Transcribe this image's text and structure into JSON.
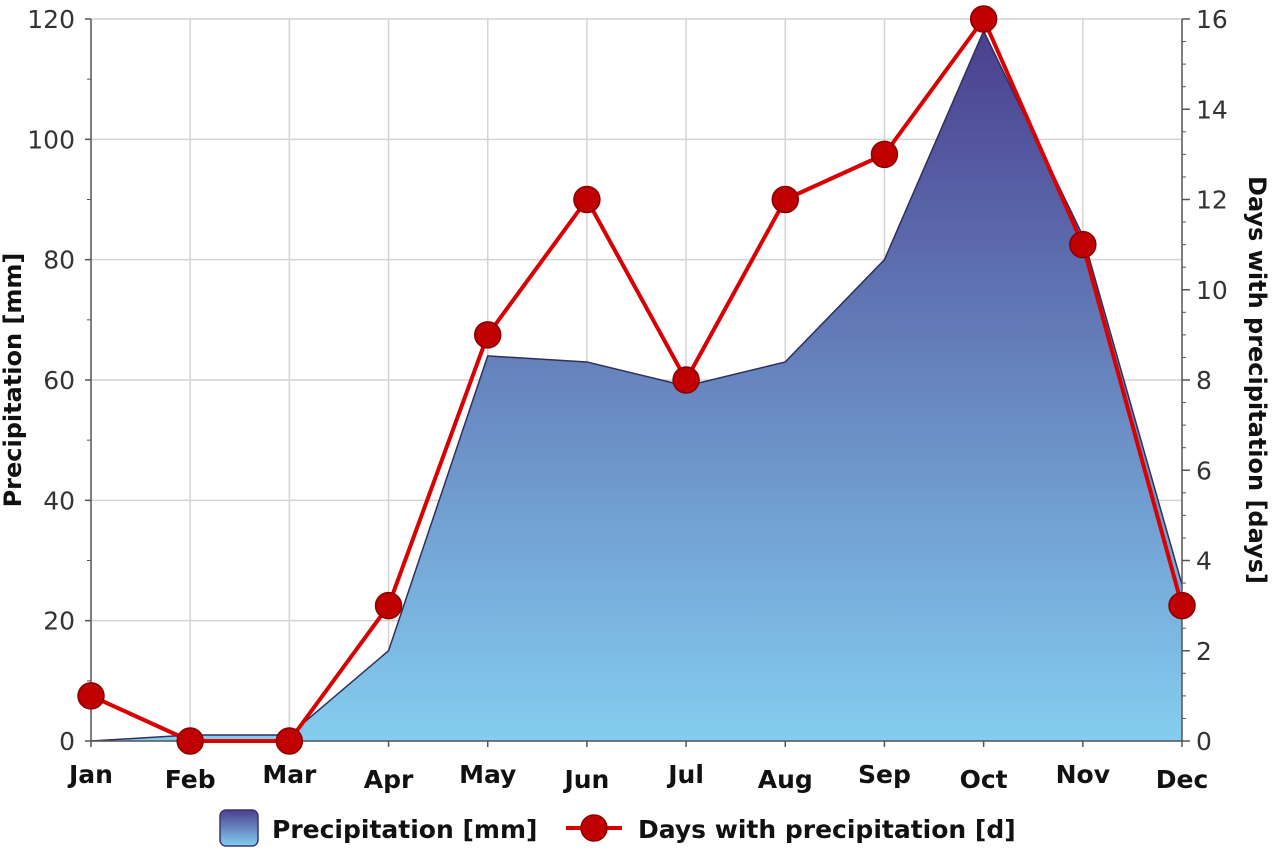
{
  "chart_data": {
    "type": "area",
    "categories": [
      "Jan",
      "Feb",
      "Mar",
      "Apr",
      "May",
      "Jun",
      "Jul",
      "Aug",
      "Sep",
      "Oct",
      "Nov",
      "Dec"
    ],
    "series": [
      {
        "name": "Precipitation [mm]",
        "type": "area",
        "axis": "left",
        "values": [
          0,
          1,
          1,
          15,
          64,
          63,
          59,
          63,
          80,
          118,
          84,
          26
        ],
        "color_top": "#4a3f8f",
        "color_bottom": "#84cdf0"
      },
      {
        "name": "Days with precipitation [d]",
        "type": "line",
        "axis": "right",
        "values": [
          1,
          0,
          0,
          3,
          9,
          12,
          8,
          12,
          13,
          16,
          11,
          3
        ],
        "color": "#d80000"
      }
    ],
    "y_left": {
      "label": "Precipitation [mm]",
      "range": [
        0,
        120
      ],
      "ticks": [
        "0",
        "20",
        "40",
        "60",
        "80",
        "100",
        "120"
      ]
    },
    "y_right": {
      "label": "Days with precipitation [days]",
      "range": [
        0,
        16
      ],
      "ticks": [
        "0",
        "2",
        "4",
        "6",
        "8",
        "10",
        "12",
        "14",
        "16"
      ]
    },
    "grid": true,
    "legend_position": "bottom"
  }
}
